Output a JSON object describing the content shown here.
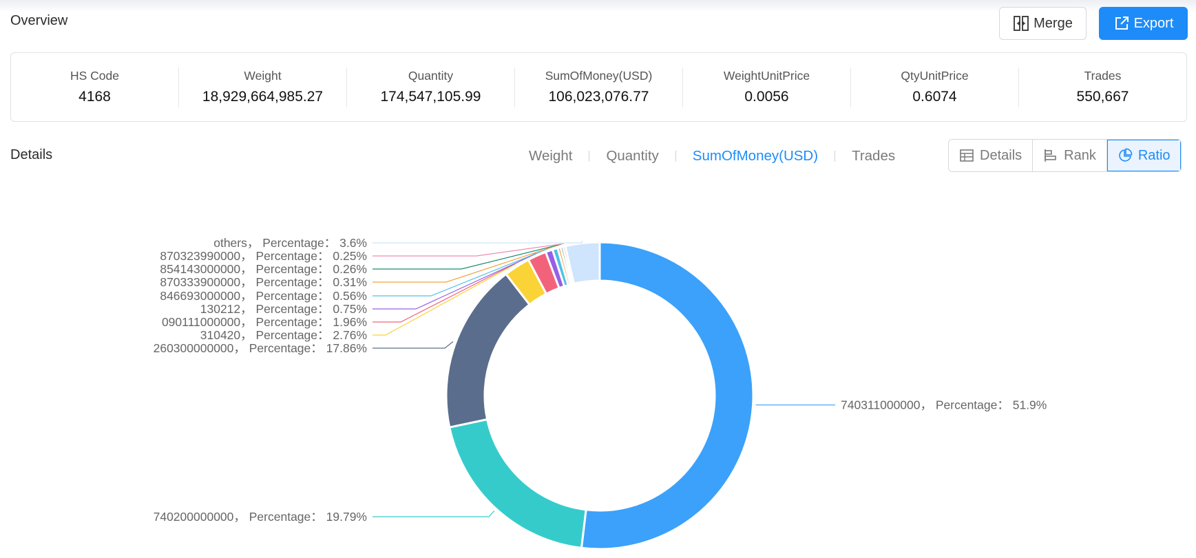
{
  "overview": {
    "title": "Overview"
  },
  "actions": {
    "merge_label": "Merge",
    "export_label": "Export"
  },
  "stats": [
    {
      "label": "HS Code",
      "value": "4168"
    },
    {
      "label": "Weight",
      "value": "18,929,664,985.27"
    },
    {
      "label": "Quantity",
      "value": "174,547,105.99"
    },
    {
      "label": "SumOfMoney(USD)",
      "value": "106,023,076.77"
    },
    {
      "label": "WeightUnitPrice",
      "value": "0.0056"
    },
    {
      "label": "QtyUnitPrice",
      "value": "0.6074"
    },
    {
      "label": "Trades",
      "value": "550,667"
    }
  ],
  "details": {
    "title": "Details",
    "metric_tabs": [
      "Weight",
      "Quantity",
      "SumOfMoney(USD)",
      "Trades"
    ],
    "active_metric": "SumOfMoney(USD)",
    "views": [
      {
        "label": "Details",
        "icon": "table-icon"
      },
      {
        "label": "Rank",
        "icon": "rank-icon"
      },
      {
        "label": "Ratio",
        "icon": "pie-icon"
      }
    ],
    "active_view": "Ratio"
  },
  "chart_data": {
    "type": "pie",
    "label_separator": "， Percentage：",
    "slices": [
      {
        "name": "740311000000",
        "value": 51.9,
        "label": "51.9%",
        "color": "#3ba1fb"
      },
      {
        "name": "740200000000",
        "value": 19.79,
        "label": "19.79%",
        "color": "#36cbcb"
      },
      {
        "name": "260300000000",
        "value": 17.86,
        "label": "17.86%",
        "color": "#5b6d8c"
      },
      {
        "name": "310420",
        "value": 2.76,
        "label": "2.76%",
        "color": "#fad337"
      },
      {
        "name": "090111000000",
        "value": 1.96,
        "label": "1.96%",
        "color": "#f2637b"
      },
      {
        "name": "130212",
        "value": 0.75,
        "label": "0.75%",
        "color": "#975fe4"
      },
      {
        "name": "846693000000",
        "value": 0.56,
        "label": "0.56%",
        "color": "#4fc0e8"
      },
      {
        "name": "870333900000",
        "value": 0.31,
        "label": "0.31%",
        "color": "#f3a23c"
      },
      {
        "name": "854143000000",
        "value": 0.26,
        "label": "0.26%",
        "color": "#1a8a6e"
      },
      {
        "name": "870323990000",
        "value": 0.25,
        "label": "0.25%",
        "color": "#f08ab4"
      },
      {
        "name": "others",
        "value": 3.6,
        "label": "3.6%",
        "color": "#cfe4fd"
      }
    ]
  }
}
